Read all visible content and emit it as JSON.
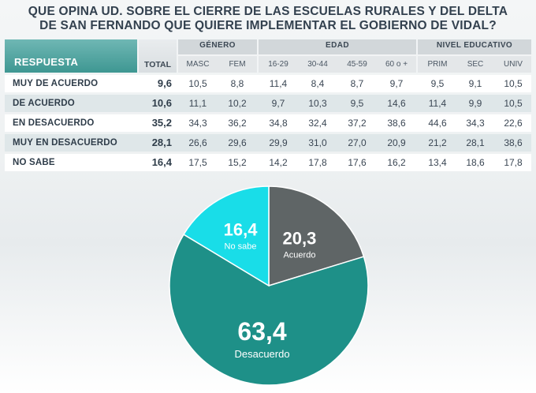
{
  "title": {
    "line1": "QUE OPINA UD. SOBRE EL CIERRE DE LAS ESCUELAS RURALES Y DEL DELTA",
    "line2": "DE SAN FERNANDO QUE QUIERE IMPLEMENTAR EL GOBIERNO DE VIDAL?"
  },
  "table": {
    "respuesta_header": "RESPUESTA",
    "total_header": "TOTAL",
    "groups": [
      {
        "label": "GÉNERO",
        "subs": [
          "MASC",
          "FEM"
        ]
      },
      {
        "label": "EDAD",
        "subs": [
          "16-29",
          "30-44",
          "45-59",
          "60 o +"
        ]
      },
      {
        "label": "NIVEL EDUCATIVO",
        "subs": [
          "PRIM",
          "SEC",
          "UNIV"
        ]
      }
    ],
    "rows": [
      {
        "label": "MUY DE ACUERDO",
        "total": "9,6",
        "cells": [
          "10,5",
          "8,8",
          "11,4",
          "8,4",
          "8,7",
          "9,7",
          "9,5",
          "9,1",
          "10,5"
        ]
      },
      {
        "label": "DE ACUERDO",
        "total": "10,6",
        "cells": [
          "11,1",
          "10,2",
          "9,7",
          "10,3",
          "9,5",
          "14,6",
          "11,4",
          "9,9",
          "10,5"
        ]
      },
      {
        "label": "EN DESACUERDO",
        "total": "35,2",
        "cells": [
          "34,3",
          "36,2",
          "34,8",
          "32,4",
          "37,2",
          "38,6",
          "44,6",
          "34,3",
          "22,6"
        ]
      },
      {
        "label": "MUY EN DESACUERDO",
        "total": "28,1",
        "cells": [
          "26,6",
          "29,6",
          "29,9",
          "31,0",
          "27,0",
          "20,9",
          "21,2",
          "28,1",
          "38,6"
        ]
      },
      {
        "label": "NO SABE",
        "total": "16,4",
        "cells": [
          "17,5",
          "15,2",
          "14,2",
          "17,8",
          "17,6",
          "16,2",
          "13,4",
          "18,6",
          "17,8"
        ]
      }
    ]
  },
  "chart_data": {
    "type": "pie",
    "slices": [
      {
        "label": "Acuerdo",
        "value": 20.3,
        "value_text": "20,3",
        "color": "#5f6566"
      },
      {
        "label": "Desacuerdo",
        "value": 63.4,
        "value_text": "63,4",
        "color": "#1e9088"
      },
      {
        "label": "No sabe",
        "value": 16.4,
        "value_text": "16,4",
        "color": "#19dde8"
      }
    ],
    "start": "top",
    "direction": "clockwise"
  },
  "colors": {
    "accent": "#3e9792",
    "row_odd": "#ffffff",
    "row_even": "#dfe7e9"
  }
}
